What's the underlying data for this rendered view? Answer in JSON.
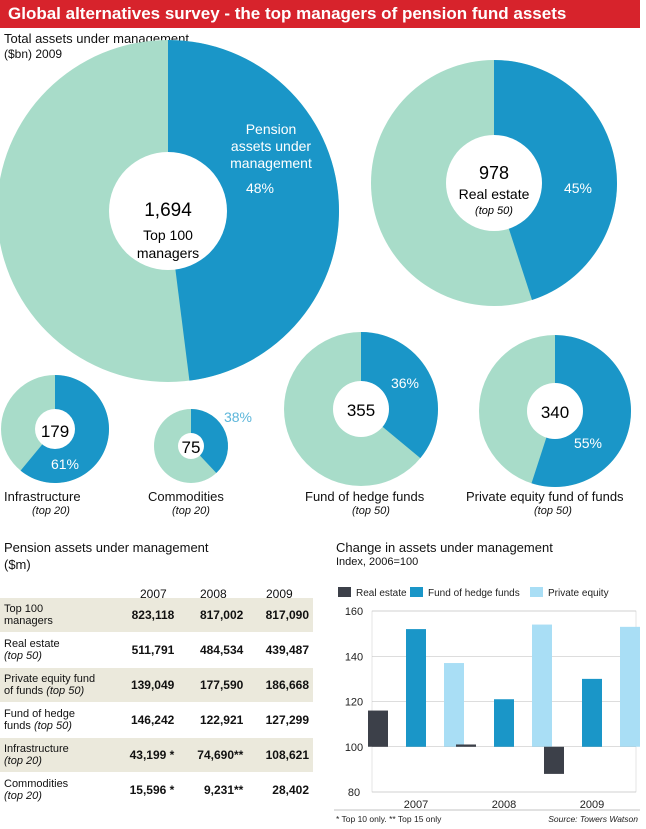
{
  "header": {
    "title": "Global alternatives survey - the top managers of pension fund assets"
  },
  "section1": {
    "title": "Total assets under management",
    "unit": "($bn) 2009"
  },
  "pies": [
    {
      "id": "top100",
      "value": "1,694",
      "line1": "Top 100",
      "line2": "managers",
      "pct": 48,
      "pct_label": "48%",
      "share_label": [
        "Pension",
        "assets under",
        "management"
      ]
    },
    {
      "id": "realestate",
      "value": "978",
      "line1": "Real estate",
      "line2": "(top 50)",
      "pct": 45,
      "pct_label": "45%"
    },
    {
      "id": "infra",
      "value": "179",
      "name": "Infrastructure",
      "sub": "(top 20)",
      "pct": 61,
      "pct_label": "61%"
    },
    {
      "id": "commod",
      "value": "75",
      "name": "Commodities",
      "sub": "(top 20)",
      "pct": 38,
      "pct_label": "38%"
    },
    {
      "id": "hedge",
      "value": "355",
      "name": "Fund of hedge funds",
      "sub": "(top 50)",
      "pct": 36,
      "pct_label": "36%"
    },
    {
      "id": "pe",
      "value": "340",
      "name": "Private equity fund of funds",
      "sub": "(top 50)",
      "pct": 55,
      "pct_label": "55%"
    }
  ],
  "colors": {
    "share": "#1a96c8",
    "rest": "#a8dcc9",
    "banner": "#d7232c",
    "shade": "#ebe9dc",
    "re_bar": "#3c4049",
    "hf_bar": "#1a96c8",
    "pe_bar": "#a9def5"
  },
  "table": {
    "title": "Pension assets under management",
    "unit": "($m)",
    "years": [
      "2007",
      "2008",
      "2009"
    ],
    "rows": [
      {
        "label": "Top 100",
        "label2": "managers",
        "label2_italic": false,
        "values": [
          "823,118",
          "817,002",
          "817,090"
        ],
        "shaded": true
      },
      {
        "label": "Real estate",
        "label2": "(top 50)",
        "label2_italic": true,
        "values": [
          "511,791",
          "484,534",
          "439,487"
        ],
        "shaded": false
      },
      {
        "label": "Private equity fund",
        "label2": "of funds (top 50)",
        "label2_italic": false,
        "values": [
          "139,049",
          "177,590",
          "186,668"
        ],
        "shaded": true
      },
      {
        "label": "Fund of hedge",
        "label2": "funds (top 50)",
        "label2_italic": false,
        "values": [
          "146,242",
          "122,921",
          "127,299"
        ],
        "shaded": false
      },
      {
        "label": "Infrastructure",
        "label2": "(top 20)",
        "label2_italic": true,
        "values": [
          "43,199 *",
          "74,690**",
          "108,621"
        ],
        "shaded": true
      },
      {
        "label": "Commodities",
        "label2": "(top 20)",
        "label2_italic": true,
        "values": [
          "15,596 *",
          "9,231**",
          "28,402"
        ],
        "shaded": false
      }
    ]
  },
  "chart_data": {
    "type": "bar",
    "title": "Change in assets under management",
    "subtitle": "Index, 2006=100",
    "categories": [
      "2007",
      "2008",
      "2009"
    ],
    "series": [
      {
        "name": "Real estate",
        "values": [
          116,
          101,
          88
        ]
      },
      {
        "name": "Fund of hedge funds",
        "values": [
          152,
          121,
          130
        ]
      },
      {
        "name": "Private equity",
        "values": [
          137,
          154,
          153
        ]
      }
    ],
    "ylim": [
      80,
      160
    ],
    "yticks": [
      "80",
      "100",
      "120",
      "140",
      "160"
    ],
    "baseline": 100,
    "legend": "top"
  },
  "footnotes": {
    "left": "* Top 10 only.  ** Top 15 only",
    "right": "Source: Towers Watson"
  }
}
